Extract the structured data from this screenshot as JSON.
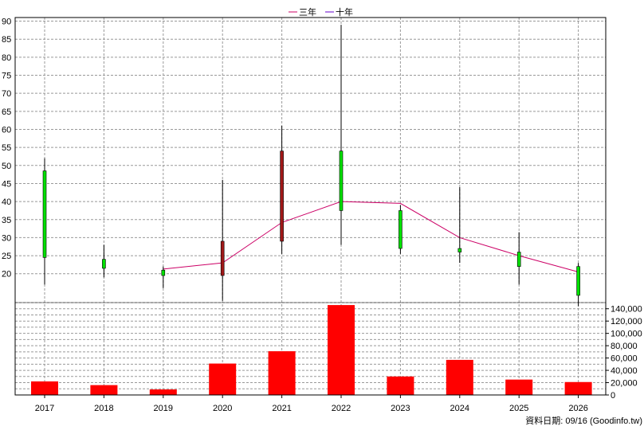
{
  "chart_data": [
    {
      "type": "candlestick",
      "legend": [
        {
          "name": "三年",
          "color": "#cc0066"
        },
        {
          "name": "十年",
          "color": "#6600cc"
        }
      ],
      "legend_placement": "top-center",
      "categories": [
        "2017",
        "2018",
        "2019",
        "2020",
        "2021",
        "2022",
        "2023",
        "2024",
        "2025",
        "2026"
      ],
      "ohlc": [
        {
          "open": 24.5,
          "high": 52,
          "low": 17,
          "close": 48.5
        },
        {
          "open": 21.5,
          "high": 28,
          "low": 19,
          "close": 24
        },
        {
          "open": 19.5,
          "high": 22,
          "low": 16,
          "close": 21
        },
        {
          "open": 29,
          "high": 46,
          "low": 12.5,
          "close": 19.5
        },
        {
          "open": 54,
          "high": 61,
          "low": 25.5,
          "close": 29
        },
        {
          "open": 37.5,
          "high": 89,
          "low": 28,
          "close": 54
        },
        {
          "open": 27,
          "high": 39,
          "low": 25.5,
          "close": 37.5
        },
        {
          "open": 26,
          "high": 44,
          "low": 23,
          "close": 27
        },
        {
          "open": 22,
          "high": 31.5,
          "low": 17,
          "close": 26
        },
        {
          "open": 14,
          "high": 23,
          "low": 11,
          "close": 22
        }
      ],
      "up_color": "#00e000",
      "down_color": "#a01818",
      "moving_average_3yr": [
        null,
        null,
        21.3,
        23,
        34.2,
        40,
        39.5,
        30,
        25,
        20.5
      ],
      "ylim": [
        15,
        90
      ],
      "yticks": [
        20,
        25,
        30,
        35,
        40,
        45,
        50,
        55,
        60,
        65,
        70,
        75,
        80,
        85,
        90
      ],
      "grid": true
    },
    {
      "type": "bar",
      "categories": [
        "2017",
        "2018",
        "2019",
        "2020",
        "2021",
        "2022",
        "2023",
        "2024",
        "2025",
        "2026"
      ],
      "values": [
        22000,
        16000,
        9000,
        51000,
        71000,
        146000,
        30000,
        57000,
        25000,
        21000
      ],
      "bar_color": "#ff0000",
      "ylim": [
        0,
        150000
      ],
      "yticks": [
        "0",
        "20,000",
        "40,000",
        "60,000",
        "80,000",
        "100,000",
        "120,000",
        "140,000"
      ],
      "ytick_values": [
        0,
        20000,
        40000,
        60000,
        80000,
        100000,
        120000,
        140000
      ],
      "grid": true
    }
  ],
  "footer": "資料日期: 09/16  (Goodinfo.tw)"
}
